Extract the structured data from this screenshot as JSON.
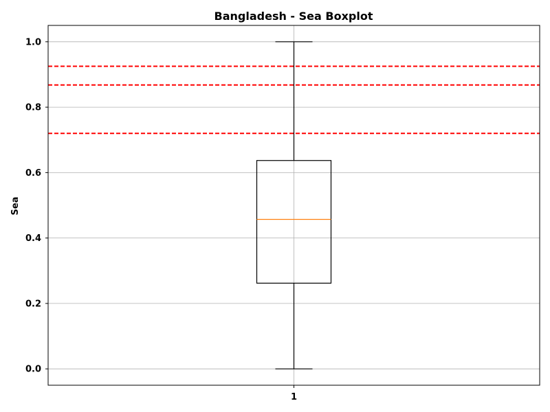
{
  "chart_data": {
    "type": "boxplot",
    "title": "Bangladesh - Sea Boxplot",
    "xlabel": "",
    "ylabel": "Sea",
    "categories": [
      "1"
    ],
    "boxes": [
      {
        "category": "1",
        "whisker_low": 0.0,
        "q1": 0.262,
        "median": 0.457,
        "q3": 0.637,
        "whisker_high": 1.0
      }
    ],
    "reference_lines": [
      0.925,
      0.868,
      0.72
    ],
    "ylim": [
      -0.05,
      1.05
    ],
    "yticks": [
      0.0,
      0.2,
      0.4,
      0.6,
      0.8,
      1.0
    ],
    "ytick_labels": [
      "0.0",
      "0.2",
      "0.4",
      "0.6",
      "0.8",
      "1.0"
    ],
    "grid": true,
    "colors": {
      "box": "#000000",
      "median": "#ff7f0e",
      "reference": "#ff0000",
      "grid": "#b0b0b0"
    }
  }
}
